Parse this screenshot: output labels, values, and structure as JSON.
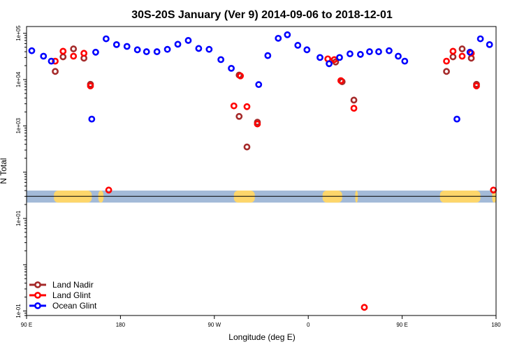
{
  "chart_data": {
    "type": "scatter",
    "title": "30S-20S January (Ver 9)   2014-09-06 to 2018-12-01",
    "xlabel": "Longitude (deg E)",
    "ylabel": "N Total",
    "y_scale": "log",
    "xlim": [
      -90,
      270
    ],
    "ylim": [
      0.08,
      140000
    ],
    "x_ticks": [
      {
        "value": -90,
        "label": "90 E"
      },
      {
        "value": -18,
        "label": "180"
      },
      {
        "value": 54,
        "label": "90 W"
      },
      {
        "value": 126,
        "label": "0"
      },
      {
        "value": 198,
        "label": "90 E"
      },
      {
        "value": 270,
        "label": "180"
      }
    ],
    "y_ticks": [
      {
        "value": 0.1,
        "label": "1e-01"
      },
      {
        "value": 10,
        "label": "1e+01"
      },
      {
        "value": 1000,
        "label": "1e+03"
      },
      {
        "value": 10000,
        "label": "1e+04"
      },
      {
        "value": 100000,
        "label": "1e+05"
      }
    ],
    "map_strip": {
      "y_range": [
        22,
        40
      ],
      "reference_line": 30,
      "ocean_color": "#a3bad8",
      "land_color": "#fdd66b",
      "land_spans": [
        [
          -69,
          -40
        ],
        [
          -35,
          -31
        ],
        [
          69,
          85
        ],
        [
          137,
          152
        ],
        [
          162,
          164
        ],
        [
          227,
          258
        ],
        [
          267,
          270
        ]
      ]
    },
    "legend": {
      "position": "bottom-left",
      "entries": [
        "Land Nadir",
        "Land Glint",
        "Ocean Glint"
      ]
    },
    "series": [
      {
        "name": "Land Nadir",
        "color": "#a52a2a",
        "points": [
          [
            -68,
            15000
          ],
          [
            -62,
            31000
          ],
          [
            -54,
            46000
          ],
          [
            -46,
            29000
          ],
          [
            -41,
            7900
          ],
          [
            73,
            12500
          ],
          [
            73,
            1600
          ],
          [
            79,
            350
          ],
          [
            87,
            1200
          ],
          [
            147,
            24000
          ],
          [
            152,
            9000
          ],
          [
            161,
            3600
          ],
          [
            232,
            15000
          ],
          [
            237,
            31000
          ],
          [
            244,
            46000
          ],
          [
            251,
            29000
          ],
          [
            255,
            7900
          ]
        ]
      },
      {
        "name": "Land Glint",
        "color": "#ff0000",
        "points": [
          [
            -68,
            25000
          ],
          [
            -62,
            41000
          ],
          [
            -54,
            32000
          ],
          [
            -46,
            37000
          ],
          [
            -41,
            7300
          ],
          [
            -27,
            41
          ],
          [
            74,
            12000
          ],
          [
            69,
            2700
          ],
          [
            79,
            2600
          ],
          [
            87,
            1100
          ],
          [
            141,
            28000
          ],
          [
            146,
            27000
          ],
          [
            151,
            9500
          ],
          [
            161,
            2400
          ],
          [
            169,
            0.12
          ],
          [
            232,
            25000
          ],
          [
            237,
            41000
          ],
          [
            244,
            32000
          ],
          [
            251,
            37000
          ],
          [
            255,
            7300
          ],
          [
            268,
            41
          ]
        ]
      },
      {
        "name": "Ocean Glint",
        "color": "#0000ff",
        "points": [
          [
            -86,
            42000
          ],
          [
            -77,
            32000
          ],
          [
            -71,
            25000
          ],
          [
            -40,
            1400
          ],
          [
            -37,
            39000
          ],
          [
            -29,
            76000
          ],
          [
            -21,
            57000
          ],
          [
            -13,
            52000
          ],
          [
            -5,
            44000
          ],
          [
            2,
            40000
          ],
          [
            10,
            40000
          ],
          [
            18,
            45000
          ],
          [
            26,
            58000
          ],
          [
            34,
            70000
          ],
          [
            42,
            47000
          ],
          [
            50,
            45000
          ],
          [
            59,
            27000
          ],
          [
            67,
            17500
          ],
          [
            88,
            7800
          ],
          [
            95,
            33000
          ],
          [
            103,
            78000
          ],
          [
            110,
            93000
          ],
          [
            118,
            55000
          ],
          [
            125,
            44000
          ],
          [
            135,
            30000
          ],
          [
            142,
            22000
          ],
          [
            150,
            30000
          ],
          [
            158,
            36000
          ],
          [
            166,
            35000
          ],
          [
            173,
            40000
          ],
          [
            180,
            40000
          ],
          [
            188,
            42000
          ],
          [
            195,
            32000
          ],
          [
            200,
            25000
          ],
          [
            240,
            1400
          ],
          [
            250,
            39000
          ],
          [
            258,
            76000
          ],
          [
            265,
            57000
          ]
        ]
      }
    ]
  }
}
